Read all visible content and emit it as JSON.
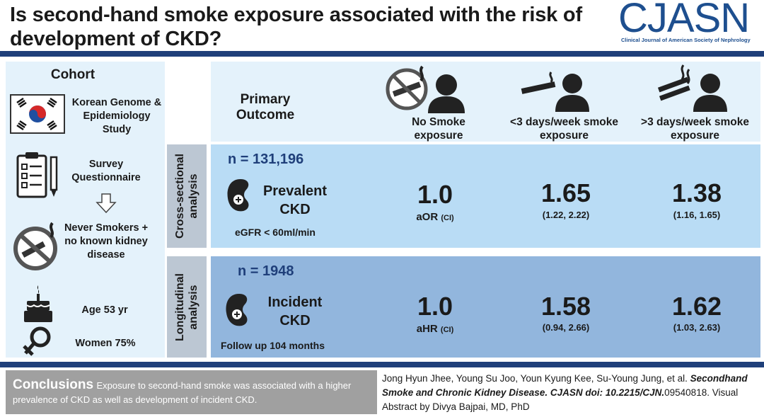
{
  "header": {
    "title": "Is second-hand smoke exposure associated with the risk of development of CKD?",
    "logo_text": "CJASN",
    "logo_subtitle": "Clinical Journal of American Society of Nephrology"
  },
  "cohort": {
    "title": "Cohort",
    "study": "Korean Genome & Epidemiology Study",
    "survey": "Survey Questionnaire",
    "criteria": "Never Smokers + no known kidney disease",
    "age": "Age 53 yr",
    "women": "Women 75%"
  },
  "header_cols": {
    "primary": "Primary Outcome",
    "col1": "No Smoke exposure",
    "col2": "<3 days/week smoke exposure",
    "col3": ">3 days/week smoke exposure"
  },
  "cross_sectional": {
    "tab": "Cross-sectional analysis",
    "n": "n = 131,196",
    "outcome": "Prevalent CKD",
    "definition": "eGFR < 60ml/min",
    "ref_value": "1.0",
    "stat": "aOR",
    "stat_ci": "(CI)",
    "v2": "1.65",
    "ci2": "(1.22, 2.22)",
    "v3": "1.38",
    "ci3": "(1.16, 1.65)"
  },
  "longitudinal": {
    "tab": "Longitudinal analysis",
    "n": "n = 1948",
    "outcome": "Incident CKD",
    "followup": "Follow up 104 months",
    "ref_value": "1.0",
    "stat": "aHR",
    "stat_ci": "(CI)",
    "v2": "1.58",
    "ci2": "(0.94, 2.66)",
    "v3": "1.62",
    "ci3": "(1.03, 2.63)"
  },
  "conclusions": {
    "heading": "Conclusions",
    "body": "Exposure to second-hand smoke was associated with a higher prevalence of CKD as well as development of incident CKD."
  },
  "citation": {
    "authors": "Jong Hyun Jhee, Young Su Joo, Youn Kyung Kee, Su-Young Jung, et al.",
    "title_doi": "Secondhand Smoke and Chronic Kidney Disease. CJASN doi: 10.2215/CJN.",
    "doi_tail": "09540818. Visual Abstract by Divya Bajpai, MD, PhD"
  },
  "icons": [
    "korea-flag-icon",
    "clipboard-icon",
    "down-arrow-icon",
    "no-smoking-icon",
    "cake-icon",
    "female-symbol-icon",
    "kidney-icon",
    "person-icon",
    "cigarette-icon"
  ],
  "colors": {
    "navy": "#1f3f7a",
    "light_blue": "#e4f2fb",
    "mid_blue": "#b9dcf5",
    "deep_blue": "#92b6dd",
    "gray": "#a0a0a0"
  }
}
